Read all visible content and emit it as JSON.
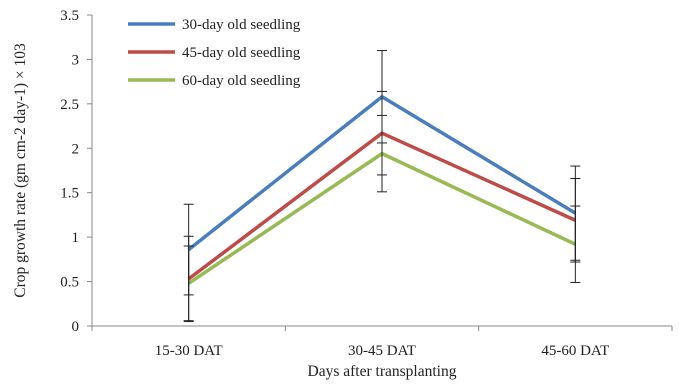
{
  "chart_data": {
    "type": "line",
    "xlabel": "Days after transplanting",
    "ylabel": "Crop growth rate (gm cm-2 day-1) × 103",
    "categories": [
      "15-30 DAT",
      "30-45 DAT",
      "45-60 DAT"
    ],
    "ylim": [
      0,
      3.5
    ],
    "yticks": [
      "0",
      "0.5",
      "1",
      "1.5",
      "2",
      "2.5",
      "3",
      "3.5"
    ],
    "grid": false,
    "legend_position": "top-left",
    "series": [
      {
        "name": "30-day old seedling",
        "color": "#4a7ebb",
        "values": [
          0.86,
          2.58,
          1.27
        ],
        "errors": [
          0.51,
          0.52,
          0.53
        ]
      },
      {
        "name": "45-day old seedling",
        "color": "#be4b48",
        "values": [
          0.53,
          2.17,
          1.19
        ],
        "errors": [
          0.48,
          0.47,
          0.47
        ]
      },
      {
        "name": "60-day old seedling",
        "color": "#98b954",
        "values": [
          0.48,
          1.94,
          0.92
        ],
        "errors": [
          0.42,
          0.43,
          0.43
        ]
      }
    ]
  }
}
